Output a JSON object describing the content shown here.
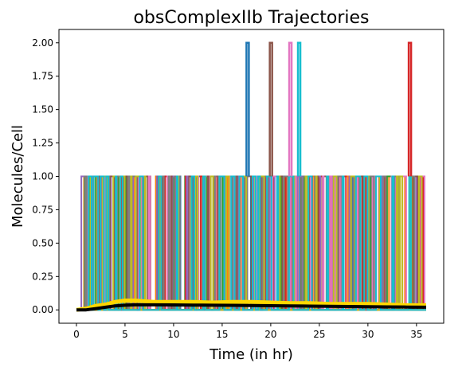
{
  "chart_data": {
    "type": "line",
    "title": "obsComplexIIb Trajectories",
    "xlabel": "Time (in hr)",
    "ylabel": "Molecules/Cell",
    "xlim": [
      -1.8,
      37.8
    ],
    "ylim": [
      -0.1,
      2.1
    ],
    "xticks": [
      0,
      5,
      10,
      15,
      20,
      25,
      30,
      35
    ],
    "xtick_labels": [
      "0",
      "5",
      "10",
      "15",
      "20",
      "25",
      "30",
      "35"
    ],
    "yticks": [
      0.0,
      0.25,
      0.5,
      0.75,
      1.0,
      1.25,
      1.5,
      1.75,
      2.0
    ],
    "ytick_labels": [
      "0.00",
      "0.25",
      "0.50",
      "0.75",
      "1.00",
      "1.25",
      "1.50",
      "1.75",
      "2.00"
    ],
    "grid": false,
    "legend": "none",
    "trajectory_value_range": [
      0,
      2
    ],
    "trajectory_time_range": [
      0.3,
      36
    ],
    "trajectory_peaks_at_2": [
      {
        "time": 17.5,
        "color": "#1f77b4"
      },
      {
        "time": 19.9,
        "color": "#8c564b"
      },
      {
        "time": 21.9,
        "color": "#e377c2"
      },
      {
        "time": 22.8,
        "color": "#17becf"
      },
      {
        "time": 34.2,
        "color": "#d62728"
      }
    ],
    "series": [
      {
        "color": "#000000",
        "x": [
          0,
          1,
          2,
          3,
          4,
          5,
          6,
          8,
          10,
          12,
          14,
          16,
          18,
          20,
          22,
          24,
          26,
          28,
          30,
          32,
          34,
          36
        ],
        "y": [
          0.0,
          0.0,
          0.01,
          0.02,
          0.03,
          0.035,
          0.038,
          0.038,
          0.037,
          0.036,
          0.035,
          0.034,
          0.033,
          0.031,
          0.03,
          0.028,
          0.027,
          0.025,
          0.024,
          0.022,
          0.021,
          0.02
        ]
      },
      {
        "color": "#ffd700",
        "x": [
          0,
          1,
          2,
          3,
          4,
          5,
          6,
          8,
          10,
          12,
          14,
          16,
          18,
          20,
          22,
          24,
          26,
          28,
          30,
          32,
          34,
          36
        ],
        "y": [
          0.0,
          0.01,
          0.03,
          0.04,
          0.06,
          0.07,
          0.07,
          0.06,
          0.06,
          0.06,
          0.055,
          0.06,
          0.06,
          0.055,
          0.05,
          0.05,
          0.045,
          0.045,
          0.045,
          0.04,
          0.035,
          0.035
        ]
      }
    ],
    "palette": [
      "#1f77b4",
      "#ff7f0e",
      "#2ca02c",
      "#d62728",
      "#9467bd",
      "#8c564b",
      "#e377c2",
      "#7f7f7f",
      "#bcbd22",
      "#17becf"
    ]
  }
}
